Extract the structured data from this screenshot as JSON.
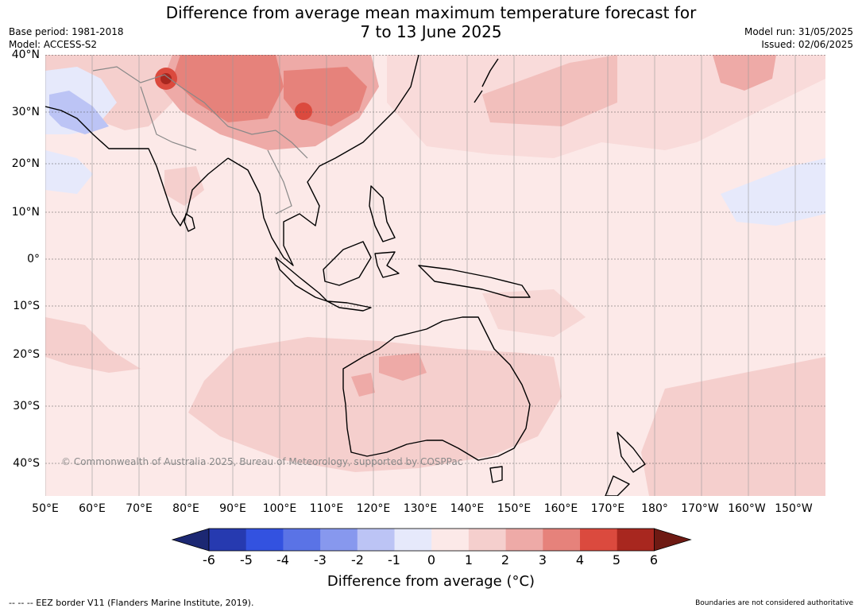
{
  "title_line1": "Difference from average mean maximum temperature forecast for",
  "title_line2": "7 to 13 June 2025",
  "meta_left": {
    "base_period": "Base period: 1981-2018",
    "model": "Model: ACCESS-S2"
  },
  "meta_right": {
    "model_run": "Model run: 31/05/2025",
    "issued": "Issued: 02/06/2025"
  },
  "lat_labels": [
    "40°N",
    "30°N",
    "20°N",
    "10°N",
    "0°",
    "10°S",
    "20°S",
    "30°S",
    "40°S"
  ],
  "lon_labels": [
    "50°E",
    "60°E",
    "70°E",
    "80°E",
    "90°E",
    "100°E",
    "110°E",
    "120°E",
    "130°E",
    "140°E",
    "150°E",
    "160°E",
    "170°E",
    "180°",
    "170°W",
    "160°W",
    "150°W"
  ],
  "copyright": "© Commonwealth of Australia 2025, Bureau of Meteorology, supported by COSPPac",
  "colorbar": {
    "ticks": [
      "-6",
      "-5",
      "-4",
      "-3",
      "-2",
      "-1",
      "0",
      "1",
      "2",
      "3",
      "4",
      "5",
      "6"
    ],
    "colors": [
      "#1c2873",
      "#263ab0",
      "#3352e0",
      "#5a73e6",
      "#8798ee",
      "#bcc4f5",
      "#e6e9fb",
      "#fce9e8",
      "#f5cfcd",
      "#eeaaa7",
      "#e6827b",
      "#db4a3e",
      "#a8271f",
      "#6e1a13"
    ],
    "title": "Difference from average (°C)"
  },
  "footer_left": "--  --  -- EEZ border V11 (Flanders Marine Institute, 2019).",
  "footer_right": "Boundaries are not considered authoritative"
}
